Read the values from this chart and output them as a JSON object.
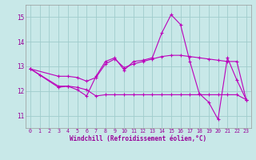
{
  "background_color": "#c8e8e8",
  "grid_color": "#a0cccc",
  "line_color": "#bb00bb",
  "xlabel": "Windchill (Refroidissement éolien,°C)",
  "xlim": [
    -0.5,
    23.5
  ],
  "ylim": [
    10.5,
    15.5
  ],
  "yticks": [
    11,
    12,
    13,
    14,
    15
  ],
  "xticks": [
    0,
    1,
    2,
    3,
    4,
    5,
    6,
    7,
    8,
    9,
    10,
    11,
    12,
    13,
    14,
    15,
    16,
    17,
    18,
    19,
    20,
    21,
    22,
    23
  ],
  "line1_x": [
    0,
    1,
    3,
    4,
    5,
    6,
    7,
    8,
    9,
    10,
    11,
    12,
    13,
    14,
    15,
    16,
    17,
    18,
    19,
    20,
    21,
    22,
    23
  ],
  "line1_y": [
    12.9,
    12.65,
    12.15,
    12.2,
    12.05,
    11.8,
    12.6,
    13.2,
    13.35,
    12.85,
    13.2,
    13.25,
    13.35,
    14.35,
    15.1,
    14.7,
    13.2,
    11.9,
    11.55,
    10.85,
    13.35,
    12.45,
    11.65
  ],
  "line2_x": [
    0,
    3,
    4,
    5,
    6,
    7,
    8,
    9,
    10,
    11,
    12,
    13,
    14,
    15,
    16,
    17,
    18,
    19,
    20,
    21,
    22,
    23
  ],
  "line2_y": [
    12.9,
    12.2,
    12.2,
    12.15,
    12.05,
    11.8,
    11.85,
    11.85,
    11.85,
    11.85,
    11.85,
    11.85,
    11.85,
    11.85,
    11.85,
    11.85,
    11.85,
    11.85,
    11.85,
    11.85,
    11.85,
    11.65
  ],
  "line3_x": [
    0,
    3,
    4,
    5,
    6,
    7,
    8,
    9,
    10,
    11,
    12,
    13,
    14,
    15,
    16,
    17,
    18,
    19,
    20,
    21,
    22,
    23
  ],
  "line3_y": [
    12.9,
    12.6,
    12.6,
    12.55,
    12.4,
    12.55,
    13.1,
    13.3,
    12.95,
    13.1,
    13.2,
    13.3,
    13.4,
    13.45,
    13.45,
    13.4,
    13.35,
    13.3,
    13.25,
    13.2,
    13.2,
    11.65
  ]
}
